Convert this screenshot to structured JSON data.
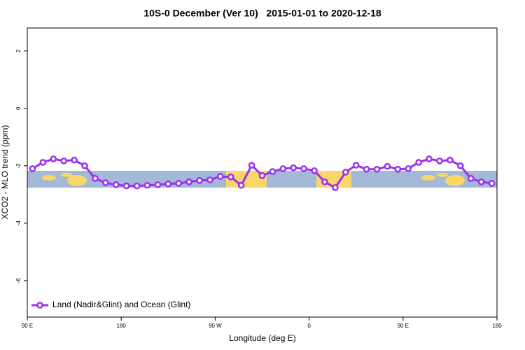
{
  "chart_data": {
    "type": "line",
    "title": "10S-0 December (Ver 10)   2015-01-01 to 2020-12-18",
    "xlabel": "Longitude (deg E)",
    "ylabel": "XCO2 - MLO trend (ppm)",
    "xlim": [
      90,
      540
    ],
    "ylim": [
      -7.27,
      2.8
    ],
    "xticks": [
      {
        "value": 90,
        "label": "90 E"
      },
      180,
      {
        "value": 270,
        "label": "90 W"
      },
      {
        "value": 360,
        "label": "0"
      },
      {
        "value": 450,
        "label": "90 E"
      },
      {
        "value": 540,
        "label": "180"
      }
    ],
    "yticks": [
      2,
      0,
      -2,
      -4,
      -6
    ],
    "legend": "bottom-left",
    "x": [
      95,
      105,
      115,
      125,
      135,
      145,
      155,
      165,
      175,
      185,
      195,
      205,
      215,
      225,
      235,
      245,
      255,
      265,
      275,
      285,
      295,
      305,
      315,
      325,
      335,
      345,
      355,
      365,
      375,
      385,
      395,
      405,
      415,
      425,
      435,
      445,
      455,
      465,
      475,
      485,
      495,
      505,
      515,
      525,
      535
    ],
    "series": [
      {
        "name": "Land (Nadir&Glint) and Ocean (Glint)",
        "color": "#9b30ef",
        "values": [
          -2.1,
          -1.88,
          -1.76,
          -1.83,
          -1.8,
          -2.0,
          -2.44,
          -2.59,
          -2.66,
          -2.7,
          -2.7,
          -2.68,
          -2.66,
          -2.63,
          -2.61,
          -2.56,
          -2.51,
          -2.49,
          -2.37,
          -2.39,
          -2.68,
          -1.98,
          -2.34,
          -2.2,
          -2.1,
          -2.07,
          -2.1,
          -2.17,
          -2.56,
          -2.76,
          -2.22,
          -1.98,
          -2.12,
          -2.12,
          -2.02,
          -2.12,
          -2.1,
          -1.88,
          -1.76,
          -1.83,
          -1.8,
          -2.0,
          -2.44,
          -2.56,
          -2.61
        ]
      }
    ]
  }
}
